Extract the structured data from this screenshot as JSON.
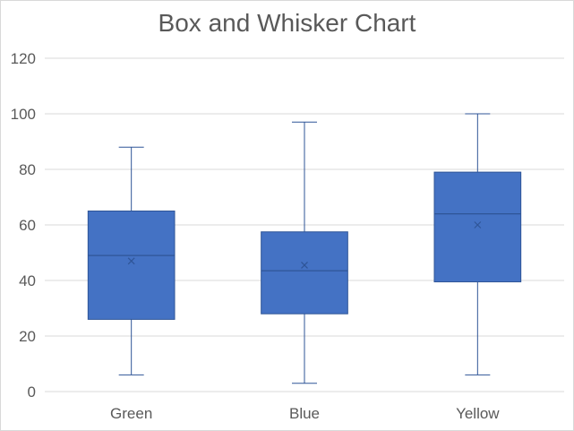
{
  "chart_data": {
    "type": "boxplot",
    "title": "Box and Whisker Chart",
    "xlabel": "",
    "ylabel": "",
    "ylim": [
      0,
      120
    ],
    "yticks": [
      0,
      20,
      40,
      60,
      80,
      100,
      120
    ],
    "grid": true,
    "legend": "none",
    "categories": [
      "Green",
      "Blue",
      "Yellow"
    ],
    "boxes": [
      {
        "category": "Green",
        "min": 6,
        "q1": 26,
        "median": 49,
        "q3": 65,
        "max": 88,
        "mean": 47
      },
      {
        "category": "Blue",
        "min": 3,
        "q1": 28,
        "median": 43.5,
        "q3": 57.5,
        "max": 97,
        "mean": 45.5
      },
      {
        "category": "Yellow",
        "min": 6,
        "q1": 39.5,
        "median": 64,
        "q3": 79,
        "max": 100,
        "mean": 60
      }
    ],
    "colors": {
      "box_fill": "#4472c4",
      "box_stroke": "#2f5597",
      "grid": "#d9d9d9",
      "text": "#595959"
    }
  }
}
